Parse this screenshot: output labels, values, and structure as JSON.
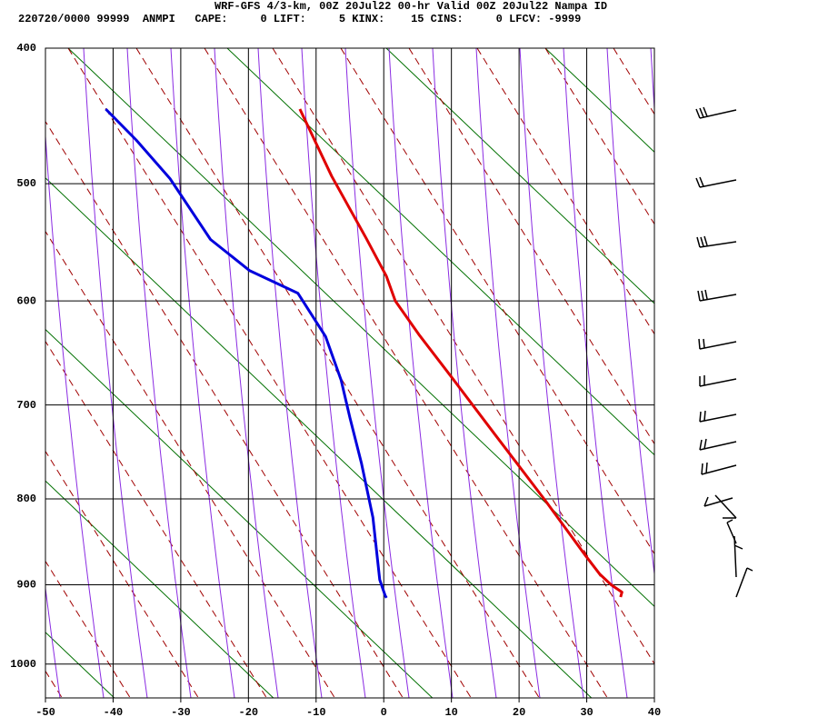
{
  "chart_data": {
    "type": "skew-t",
    "title": "WRF-GFS 4/3-km, 00Z 20Jul22 00-hr Valid 00Z 20Jul22 Nampa ID",
    "subtitle": "220720/0000 99999  ANMPI   CAPE:     0 LIFT:     5 KINX:    15 CINS:     0 LFCV: -9999",
    "xlim": [
      -50,
      40
    ],
    "xticks": [
      -50,
      -40,
      -30,
      -20,
      -10,
      0,
      10,
      20,
      30,
      40
    ],
    "ylim": [
      400,
      1045
    ],
    "yticks": [
      400,
      500,
      600,
      700,
      800,
      900,
      1000
    ],
    "y_scale_exponent": 0.286,
    "y_reversed": true,
    "grid": true,
    "series": [
      {
        "color": "#e00000",
        "x": [
          -12.4,
          -7.7,
          -2.6,
          0.4,
          1.7,
          5.3,
          10.0,
          16.5,
          23.9,
          29.9,
          31.9,
          33.6,
          35.2,
          35.0
        ],
        "values": [
          443,
          494,
          545,
          578,
          600,
          632,
          672,
          731,
          802,
          866,
          887,
          900,
          909,
          915
        ]
      },
      {
        "color": "#0000dd",
        "x": [
          -41.1,
          -36.6,
          -31.6,
          -25.6,
          -19.8,
          -12.7,
          -8.6,
          -6.3,
          -5.0,
          -3.3,
          -1.6,
          -0.6,
          0.2,
          0.4
        ],
        "values": [
          443,
          466,
          496,
          546,
          573,
          593,
          633,
          675,
          713,
          761,
          821,
          894,
          913,
          916
        ]
      }
    ]
  }
}
